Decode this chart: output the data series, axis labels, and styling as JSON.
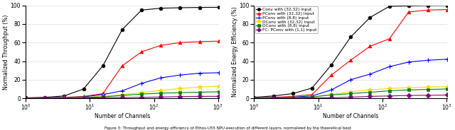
{
  "channels": [
    1,
    2,
    4,
    8,
    16,
    32,
    64,
    128,
    256,
    512,
    1024
  ],
  "throughput": {
    "conv_32_32": [
      0.5,
      1.0,
      2.5,
      10.0,
      35.0,
      74.0,
      95.0,
      97.0,
      97.5,
      97.8,
      97.9
    ],
    "pconv_32_32": [
      0.3,
      0.5,
      1.0,
      2.0,
      5.0,
      35.0,
      50.0,
      57.0,
      60.0,
      61.0,
      61.5
    ],
    "pconv_8_8": [
      0.2,
      0.4,
      0.8,
      1.5,
      4.0,
      8.0,
      16.0,
      22.0,
      25.0,
      27.0,
      27.5
    ],
    "dconv_32_32": [
      0.2,
      0.3,
      0.5,
      1.0,
      2.0,
      4.0,
      6.0,
      8.5,
      10.5,
      12.0,
      13.0
    ],
    "dconv_8_8": [
      0.1,
      0.2,
      0.4,
      0.8,
      1.5,
      3.0,
      4.5,
      5.5,
      6.0,
      6.5,
      7.0
    ],
    "fc_pconv_1_1": [
      0.05,
      0.1,
      0.15,
      0.3,
      0.5,
      0.8,
      1.0,
      1.3,
      1.8,
      2.0,
      2.1
    ]
  },
  "energy": {
    "conv_32_32": [
      1.0,
      2.5,
      5.0,
      11.0,
      36.0,
      66.0,
      87.0,
      99.0,
      99.5,
      99.8,
      99.9
    ],
    "pconv_32_32": [
      0.5,
      1.0,
      2.0,
      4.0,
      25.0,
      41.0,
      56.0,
      64.0,
      93.0,
      95.0,
      95.5
    ],
    "pconv_8_8": [
      0.3,
      0.6,
      1.2,
      2.5,
      9.0,
      20.0,
      26.0,
      34.0,
      39.0,
      41.0,
      42.0
    ],
    "dconv_32_32": [
      0.2,
      0.4,
      0.8,
      1.5,
      4.0,
      7.0,
      9.0,
      10.5,
      11.5,
      12.0,
      12.5
    ],
    "dconv_8_8": [
      0.2,
      0.3,
      0.6,
      1.5,
      3.5,
      5.0,
      6.5,
      8.0,
      9.0,
      9.5,
      10.0
    ],
    "fc_pconv_1_1": [
      0.1,
      0.1,
      0.2,
      0.4,
      0.5,
      1.2,
      2.0,
      2.5,
      3.0,
      3.2,
      3.5
    ]
  },
  "legend_labels": [
    "Conv with (32,32) input",
    "PConv with (32,32) input",
    "PConv with (8,8) input",
    "DConv with (32,32) input",
    "DConv with (8,8) input",
    "FC: PConv with (1,1) input"
  ],
  "colors": [
    "black",
    "red",
    "blue",
    "gold",
    "green",
    "purple"
  ],
  "markers": [
    "o",
    "^",
    "+",
    "*",
    "s",
    "D"
  ],
  "marker_sizes": [
    3.5,
    3.5,
    5.0,
    5.0,
    3.5,
    3.5
  ],
  "linewidth": 0.8,
  "xlabel": "Number of Channels",
  "ylabel_left": "Normalized Throughput (%)",
  "ylabel_right": "Normalized Energy Efficiency (%)",
  "caption": "Figure 3: Throughput and energy efficiency of Ethos-U55 NPU execution of different layers, normalized by the theoretical best"
}
